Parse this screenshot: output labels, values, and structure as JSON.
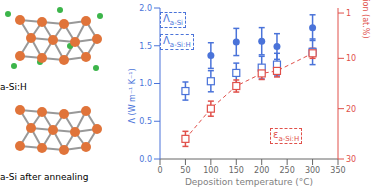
{
  "panels": {
    "structures": [
      "a-Si:H",
      "a-Si after annealing"
    ]
  },
  "chart_data": {
    "type": "scatter",
    "x_label": "Deposition temperature (°C)",
    "y_label": "Λ (W m⁻¹ K⁻¹)",
    "y2_label": "H concentration (at.%)",
    "xlim": [
      0,
      350
    ],
    "xticks": [
      0,
      50,
      100,
      150,
      200,
      250,
      300,
      350
    ],
    "ylim": [
      0,
      2
    ],
    "yticks": [
      {
        "value": 0,
        "label": "0.0"
      },
      {
        "value": 0.5,
        "label": "0.5"
      },
      {
        "value": 1,
        "label": "1.0"
      },
      {
        "value": 1.5,
        "label": "1.5"
      },
      {
        "value": 2,
        "label": "2.0"
      }
    ],
    "y2lim": [
      0,
      30
    ],
    "y2ticks": [
      1,
      10,
      20,
      30
    ],
    "grid": false,
    "series": [
      {
        "name": "Λa-Si",
        "color": "#4a73d9",
        "marker": "circle",
        "x": [
          100,
          150,
          200,
          230,
          300
        ],
        "values": [
          1.37,
          1.55,
          1.56,
          1.49,
          1.74
        ],
        "errors": [
          0.17,
          0.18,
          0.18,
          0.17,
          0.17
        ]
      },
      {
        "name": "Λa-Si:H",
        "color": "#4a73d9",
        "marker": "open_square",
        "x": [
          50,
          100,
          150,
          200,
          230,
          300
        ],
        "values": [
          0.9,
          1.03,
          1.14,
          1.21,
          1.25,
          1.42
        ],
        "errors": [
          0.12,
          0.14,
          0.13,
          0.15,
          0.15,
          0.17
        ]
      },
      {
        "name": "εa-Si:H",
        "color": "#e0504a",
        "marker": "open_square",
        "line_style": "dashed",
        "axis": "y2",
        "x": [
          50,
          100,
          150,
          200,
          230,
          300
        ],
        "values": [
          26,
          20,
          15.5,
          13,
          12.5,
          9
        ],
        "errors": [
          1.5,
          1.5,
          1.2,
          1.2,
          1.2,
          1.0
        ]
      }
    ]
  }
}
